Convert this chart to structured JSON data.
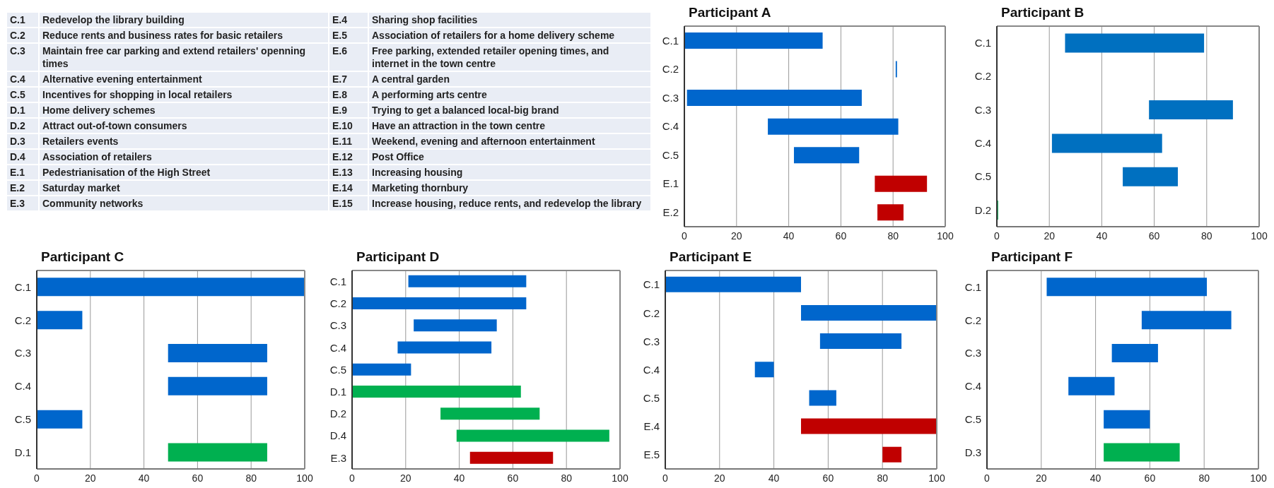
{
  "chart_data": [
    {
      "type": "other",
      "annotations": [
        "C.1",
        "Redevelop the library building",
        "C.2",
        "Reduce rents and business rates for basic retailers",
        "C.3",
        "Maintain free car parking and extend retailers' openning times",
        "C.4",
        "Alternative evening entertainment",
        "C.5",
        "Incentives for shopping in local retailers",
        "D.1",
        "Home delivery schemes",
        "D.2",
        "Attract out-of-town consumers",
        "D.3",
        "Retailers events",
        "D.4",
        "Association of retailers",
        "E.1",
        "Pedestrianisation of the High Street",
        "E.2",
        "Saturday market",
        "E.3",
        "Community networks",
        "E.4",
        "Sharing shop facilities",
        "E.5",
        "Association of retailers for a home delivery scheme",
        "E.6",
        "Free parking, extended retailer opening times, and internet in the town centre",
        "E.7",
        "A central garden",
        "E.8",
        "A performing arts centre",
        "E.9",
        "Trying to get a balanced local-big brand",
        "E.10",
        "Have an attraction in the town centre",
        "E.11",
        "Weekend, evening and afternoon entertainment",
        "E.12",
        "Post Office",
        "E.13",
        "Increasing housing",
        "E.14",
        "Marketing thornbury",
        "E.15",
        "Increase housing, reduce rents, and redevelop the library"
      ]
    },
    {
      "type": "bar",
      "orientation": "horizontal",
      "title": "Participant A",
      "categories": [
        "C.1",
        "C.2",
        "C.3",
        "C.4",
        "C.5",
        "E.1",
        "E.2"
      ],
      "base": [
        0,
        81,
        1,
        32,
        42,
        73,
        74
      ],
      "values": [
        53,
        0.5,
        67,
        50,
        25,
        20,
        10
      ],
      "colors": [
        "#0066cc",
        "#0066cc",
        "#0066cc",
        "#0066cc",
        "#0066cc",
        "#c00000",
        "#c00000"
      ],
      "xlim": [
        0,
        100
      ],
      "xticks": [
        0,
        20,
        40,
        60,
        80,
        100
      ],
      "grid": "x"
    },
    {
      "type": "bar",
      "orientation": "horizontal",
      "title": "Participant B",
      "categories": [
        "C.1",
        "C.2",
        "C.3",
        "C.4",
        "C.5",
        "D.2"
      ],
      "base": [
        26,
        null,
        58,
        21,
        48,
        0
      ],
      "values": [
        53,
        null,
        32,
        42,
        21,
        0.5
      ],
      "colors": [
        "#0070c0",
        "#0070c0",
        "#0070c0",
        "#0070c0",
        "#0070c0",
        "#00b050"
      ],
      "xlim": [
        0,
        100
      ],
      "xticks": [
        0,
        20,
        40,
        60,
        80,
        100
      ],
      "grid": "x"
    },
    {
      "type": "bar",
      "orientation": "horizontal",
      "title": "Participant C",
      "categories": [
        "C.1",
        "C.2",
        "C.3",
        "C.4",
        "C.5",
        "D.1"
      ],
      "base": [
        0,
        0,
        49,
        49,
        0,
        49
      ],
      "values": [
        100,
        17,
        37,
        37,
        17,
        37
      ],
      "colors": [
        "#0066cc",
        "#0066cc",
        "#0066cc",
        "#0066cc",
        "#0066cc",
        "#00b050"
      ],
      "xlim": [
        0,
        100
      ],
      "xticks": [
        0,
        20,
        40,
        60,
        80,
        100
      ],
      "grid": "x"
    },
    {
      "type": "bar",
      "orientation": "horizontal",
      "title": "Participant D",
      "categories": [
        "C.1",
        "C.2",
        "C.3",
        "C.4",
        "C.5",
        "D.1",
        "D.2",
        "D.4",
        "E.3"
      ],
      "base": [
        21,
        0,
        23,
        17,
        0,
        0,
        33,
        39,
        44
      ],
      "values": [
        44,
        65,
        31,
        35,
        22,
        63,
        37,
        57,
        31
      ],
      "colors": [
        "#0066cc",
        "#0066cc",
        "#0066cc",
        "#0066cc",
        "#0066cc",
        "#00b050",
        "#00b050",
        "#00b050",
        "#c00000"
      ],
      "xlim": [
        0,
        100
      ],
      "xticks": [
        0,
        20,
        40,
        60,
        80,
        100
      ],
      "grid": "x"
    },
    {
      "type": "bar",
      "orientation": "horizontal",
      "title": "Participant E",
      "categories": [
        "C.1",
        "C.2",
        "C.3",
        "C.4",
        "C.5",
        "E.4",
        "E.5"
      ],
      "base": [
        0,
        50,
        57,
        33,
        53,
        50,
        80
      ],
      "values": [
        50,
        50,
        30,
        7,
        10,
        50,
        7
      ],
      "colors": [
        "#0066cc",
        "#0066cc",
        "#0066cc",
        "#0066cc",
        "#0066cc",
        "#c00000",
        "#c00000"
      ],
      "xlim": [
        0,
        100
      ],
      "xticks": [
        0,
        20,
        40,
        60,
        80,
        100
      ],
      "grid": "x"
    },
    {
      "type": "bar",
      "orientation": "horizontal",
      "title": "Participant F",
      "categories": [
        "C.1",
        "C.2",
        "C.3",
        "C.4",
        "C.5",
        "D.3"
      ],
      "base": [
        22,
        57,
        46,
        30,
        43,
        43
      ],
      "values": [
        59,
        33,
        17,
        17,
        17,
        28
      ],
      "colors": [
        "#0066cc",
        "#0066cc",
        "#0066cc",
        "#0066cc",
        "#0066cc",
        "#00b050"
      ],
      "xlim": [
        0,
        100
      ],
      "xticks": [
        0,
        20,
        40,
        60,
        80,
        100
      ],
      "grid": "x"
    }
  ]
}
